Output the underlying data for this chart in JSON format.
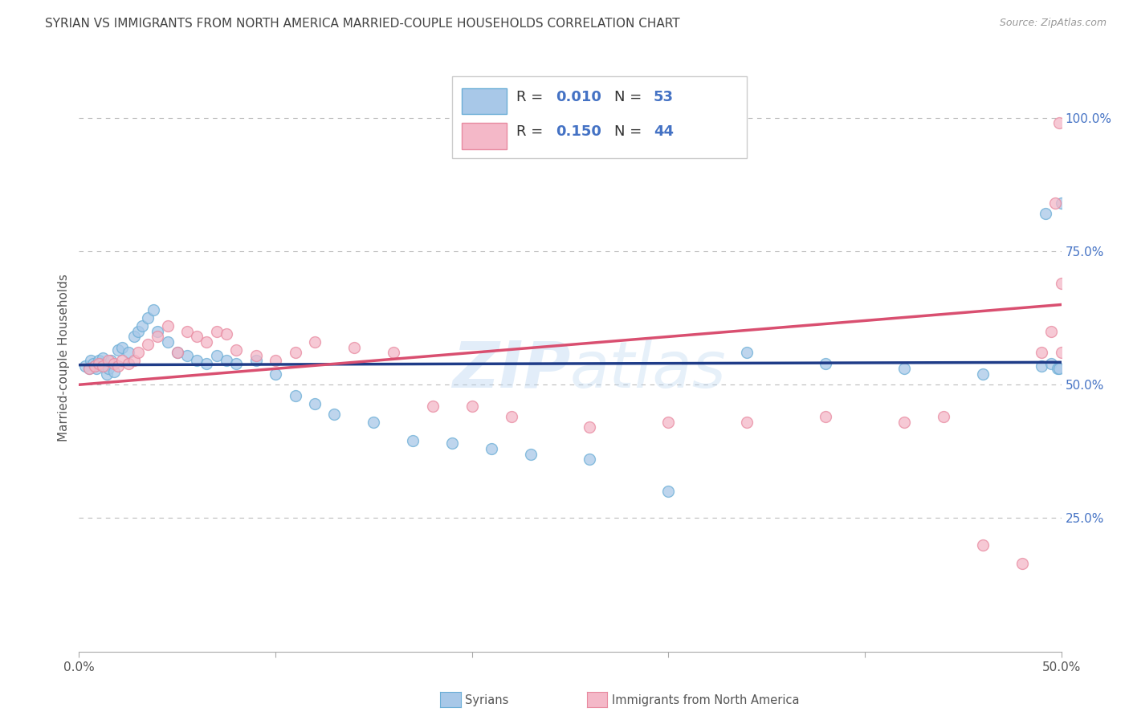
{
  "title": "SYRIAN VS IMMIGRANTS FROM NORTH AMERICA MARRIED-COUPLE HOUSEHOLDS CORRELATION CHART",
  "source": "Source: ZipAtlas.com",
  "ylabel": "Married-couple Households",
  "watermark": "ZIPAtlas",
  "xlim": [
    0.0,
    0.5
  ],
  "ylim": [
    0.0,
    1.1
  ],
  "yticks_right": [
    0.25,
    0.5,
    0.75,
    1.0
  ],
  "yticklabels_right": [
    "25.0%",
    "50.0%",
    "75.0%",
    "100.0%"
  ],
  "axis_color": "#4472c4",
  "grid_color": "#bbbbbb",
  "blue_color": "#a8c8e8",
  "pink_color": "#f4b8c8",
  "blue_edge_color": "#6baed6",
  "pink_edge_color": "#e88aa0",
  "line_blue": "#1f3c88",
  "line_pink": "#d94f70",
  "blue_scatter_x": [
    0.003,
    0.005,
    0.006,
    0.007,
    0.008,
    0.009,
    0.01,
    0.011,
    0.012,
    0.013,
    0.014,
    0.015,
    0.016,
    0.018,
    0.02,
    0.022,
    0.025,
    0.028,
    0.03,
    0.032,
    0.035,
    0.038,
    0.04,
    0.045,
    0.05,
    0.055,
    0.06,
    0.065,
    0.07,
    0.075,
    0.08,
    0.09,
    0.1,
    0.11,
    0.12,
    0.13,
    0.15,
    0.17,
    0.19,
    0.21,
    0.23,
    0.26,
    0.3,
    0.34,
    0.38,
    0.42,
    0.46,
    0.49,
    0.492,
    0.495,
    0.498,
    0.499,
    0.5
  ],
  "blue_scatter_y": [
    0.535,
    0.53,
    0.545,
    0.54,
    0.535,
    0.53,
    0.545,
    0.54,
    0.55,
    0.535,
    0.52,
    0.53,
    0.545,
    0.525,
    0.565,
    0.57,
    0.56,
    0.59,
    0.6,
    0.61,
    0.625,
    0.64,
    0.6,
    0.58,
    0.56,
    0.555,
    0.545,
    0.54,
    0.555,
    0.545,
    0.54,
    0.545,
    0.52,
    0.48,
    0.465,
    0.445,
    0.43,
    0.395,
    0.39,
    0.38,
    0.37,
    0.36,
    0.3,
    0.56,
    0.54,
    0.53,
    0.52,
    0.535,
    0.82,
    0.54,
    0.53,
    0.53,
    0.84
  ],
  "pink_scatter_x": [
    0.005,
    0.008,
    0.01,
    0.012,
    0.015,
    0.018,
    0.02,
    0.022,
    0.025,
    0.028,
    0.03,
    0.035,
    0.04,
    0.045,
    0.05,
    0.055,
    0.06,
    0.065,
    0.07,
    0.075,
    0.08,
    0.09,
    0.1,
    0.11,
    0.12,
    0.14,
    0.16,
    0.18,
    0.2,
    0.22,
    0.26,
    0.3,
    0.34,
    0.38,
    0.42,
    0.44,
    0.46,
    0.48,
    0.49,
    0.495,
    0.497,
    0.499,
    0.5,
    0.5
  ],
  "pink_scatter_y": [
    0.53,
    0.535,
    0.54,
    0.535,
    0.545,
    0.54,
    0.535,
    0.545,
    0.54,
    0.545,
    0.56,
    0.575,
    0.59,
    0.61,
    0.56,
    0.6,
    0.59,
    0.58,
    0.6,
    0.595,
    0.565,
    0.555,
    0.545,
    0.56,
    0.58,
    0.57,
    0.56,
    0.46,
    0.46,
    0.44,
    0.42,
    0.43,
    0.43,
    0.44,
    0.43,
    0.44,
    0.2,
    0.165,
    0.56,
    0.6,
    0.84,
    0.99,
    0.56,
    0.69
  ],
  "blue_line_x": [
    0.0,
    0.5
  ],
  "blue_line_y": [
    0.537,
    0.542
  ],
  "pink_line_x": [
    0.0,
    0.5
  ],
  "pink_line_y": [
    0.5,
    0.65
  ],
  "marker_size": 100,
  "marker_alpha": 0.75,
  "line_width": 2.5,
  "legend_label1": "Syrians",
  "legend_label2": "Immigrants from North America"
}
